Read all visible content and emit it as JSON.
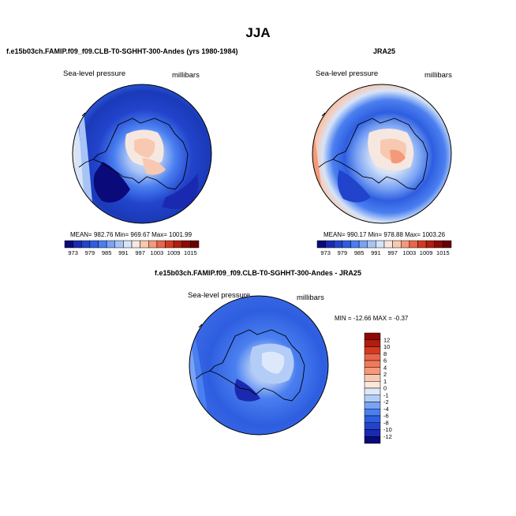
{
  "page": {
    "title": "JJA",
    "colors": {
      "background": "#ffffff",
      "coastline": "#000000"
    }
  },
  "chart_data": [
    {
      "type": "heatmap",
      "projection": "south-polar-stereographic",
      "title": "f.e15b03ch.FAMIP.f09_f09.CLB-T0-SGHHT-300-Andes (yrs 1980-1984)",
      "left_label": "Sea-level pressure",
      "right_label": "millibars",
      "stats_text": "MEAN= 982.76   Min= 969.67   Max= 1001.99",
      "stats": {
        "mean": 982.76,
        "min": 969.67,
        "max": 1001.99
      },
      "colorbar": {
        "orientation": "horizontal",
        "levels": [
          973,
          976,
          979,
          982,
          985,
          988,
          991,
          994,
          997,
          1000,
          1003,
          1006,
          1009,
          1012,
          1015
        ],
        "tick_labels": [
          "973",
          "979",
          "985",
          "991",
          "997",
          "1003",
          "1009",
          "1015"
        ],
        "colors": [
          "#0a0a7a",
          "#1a2ab0",
          "#2244cc",
          "#2e5ee0",
          "#4a7ff0",
          "#7aa3f4",
          "#a8c4f6",
          "#d6e4f8",
          "#f6e8e0",
          "#f8c8b0",
          "#f49a7a",
          "#e8664a",
          "#d43a22",
          "#b01e10",
          "#8c0a04",
          "#6a0000"
        ]
      },
      "field_description": "lowest pressure over Southern Ocean (Amundsen/Bellingshausen), highest over East Antarctica and northern edge"
    },
    {
      "type": "heatmap",
      "projection": "south-polar-stereographic",
      "title": "JRA25",
      "left_label": "Sea-level pressure",
      "right_label": "millibars",
      "stats_text": "MEAN= 990.17   Min= 978.88   Max= 1003.26",
      "stats": {
        "mean": 990.17,
        "min": 978.88,
        "max": 1003.26
      },
      "colorbar": {
        "orientation": "horizontal",
        "levels": [
          973,
          976,
          979,
          982,
          985,
          988,
          991,
          994,
          997,
          1000,
          1003,
          1006,
          1009,
          1012,
          1015
        ],
        "tick_labels": [
          "973",
          "979",
          "985",
          "991",
          "997",
          "1003",
          "1009",
          "1015"
        ],
        "colors": [
          "#0a0a7a",
          "#1a2ab0",
          "#2244cc",
          "#2e5ee0",
          "#4a7ff0",
          "#7aa3f4",
          "#a8c4f6",
          "#d6e4f8",
          "#f6e8e0",
          "#f8c8b0",
          "#f49a7a",
          "#e8664a",
          "#d43a22",
          "#b01e10",
          "#8c0a04",
          "#6a0000"
        ]
      },
      "field_description": "blue ring of low pressure around Antarctica, salmon/red high pressure at continent interior and northern edge"
    },
    {
      "type": "heatmap",
      "projection": "south-polar-stereographic",
      "title": "f.e15b03ch.FAMIP.f09_f09.CLB-T0-SGHHT-300-Andes - JRA25",
      "left_label": "Sea-level pressure",
      "right_label": "millibars",
      "stats_text": "MIN = -12.66  MAX =  -0.37",
      "stats": {
        "min": -12.66,
        "max": -0.37
      },
      "colorbar": {
        "orientation": "vertical",
        "tick_labels": [
          "12",
          "10",
          "8",
          "6",
          "4",
          "2",
          "1",
          "0",
          "-1",
          "-2",
          "-4",
          "-6",
          "-8",
          "-10",
          "-12"
        ],
        "colors": [
          "#8c0a04",
          "#b01e10",
          "#d43a22",
          "#e8664a",
          "#f07a58",
          "#f49a7a",
          "#f8c8b0",
          "#fbe6da",
          "#dde8fa",
          "#b4cdf6",
          "#7aa3f4",
          "#4a7ff0",
          "#2e5ee0",
          "#2244cc",
          "#1a2ab0",
          "#0a0a7a"
        ]
      },
      "field_description": "difference field entirely negative: mostly -6 to -8 over ocean, lighter (-1 to -4) over East Antarctic plateau"
    }
  ]
}
